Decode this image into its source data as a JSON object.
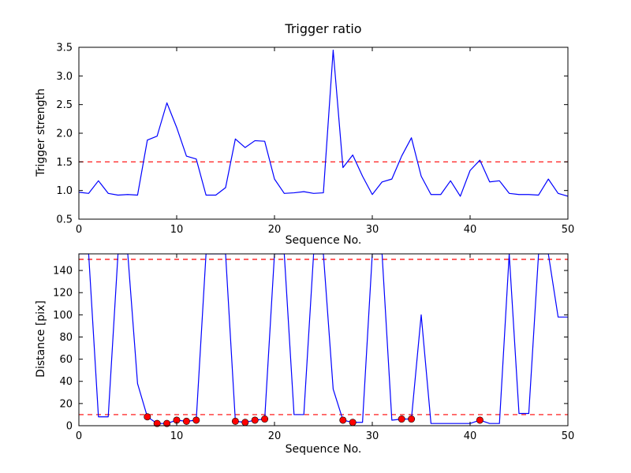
{
  "figure": {
    "background": "#ffffff"
  },
  "chart_data": [
    {
      "type": "line",
      "name": "trigger-strength",
      "title": "Trigger ratio",
      "xlabel": "Sequence No.",
      "ylabel": "Trigger strength",
      "xlim": [
        0,
        50
      ],
      "ylim": [
        0.5,
        3.5
      ],
      "xticks": [
        0,
        10,
        20,
        30,
        40,
        50
      ],
      "xtick_labels": [
        "0",
        "10",
        "20",
        "30",
        "40",
        "50"
      ],
      "yticks": [
        0.5,
        1.0,
        1.5,
        2.0,
        2.5,
        3.0,
        3.5
      ],
      "ytick_labels": [
        "0.5",
        "1.0",
        "1.5",
        "2.0",
        "2.5",
        "3.0",
        "3.5"
      ],
      "line_color": "#0000ff",
      "threshold_color": "#ff0000",
      "thresholds": [
        1.5
      ],
      "grid": false,
      "legend": null,
      "x": [
        0,
        1,
        2,
        3,
        4,
        5,
        6,
        7,
        8,
        9,
        10,
        11,
        12,
        13,
        14,
        15,
        16,
        17,
        18,
        19,
        20,
        21,
        22,
        23,
        24,
        25,
        26,
        27,
        28,
        29,
        30,
        31,
        32,
        33,
        34,
        35,
        36,
        37,
        38,
        39,
        40,
        41,
        42,
        43,
        44,
        45,
        46,
        47,
        48,
        49,
        50
      ],
      "y": [
        0.97,
        0.95,
        1.17,
        0.95,
        0.92,
        0.93,
        0.92,
        1.88,
        1.95,
        2.53,
        2.1,
        1.6,
        1.55,
        0.92,
        0.92,
        1.05,
        1.9,
        1.75,
        1.87,
        1.86,
        1.2,
        0.95,
        0.96,
        0.98,
        0.95,
        0.96,
        3.45,
        1.4,
        1.62,
        1.25,
        0.93,
        1.15,
        1.2,
        1.6,
        1.92,
        1.25,
        0.93,
        0.93,
        1.17,
        0.9,
        1.35,
        1.53,
        1.15,
        1.17,
        0.95,
        0.93,
        0.93,
        0.92,
        1.2,
        0.95,
        0.9
      ]
    },
    {
      "type": "line",
      "name": "distance",
      "title": "",
      "xlabel": "Sequence No.",
      "ylabel": "Distance [pix]",
      "xlim": [
        0,
        50
      ],
      "ylim": [
        0,
        155
      ],
      "xticks": [
        0,
        10,
        20,
        30,
        40,
        50
      ],
      "xtick_labels": [
        "0",
        "10",
        "20",
        "30",
        "40",
        "50"
      ],
      "yticks": [
        0,
        20,
        40,
        60,
        80,
        100,
        120,
        140
      ],
      "ytick_labels": [
        "0",
        "20",
        "40",
        "60",
        "80",
        "100",
        "120",
        "140"
      ],
      "line_color": "#0000ff",
      "threshold_color": "#ff0000",
      "thresholds": [
        150,
        10
      ],
      "grid": false,
      "legend": null,
      "x": [
        0,
        1,
        2,
        3,
        4,
        5,
        6,
        7,
        8,
        9,
        10,
        11,
        12,
        13,
        14,
        15,
        16,
        17,
        18,
        19,
        20,
        21,
        22,
        23,
        24,
        25,
        26,
        27,
        28,
        29,
        30,
        31,
        32,
        33,
        34,
        35,
        36,
        37,
        38,
        39,
        40,
        41,
        42,
        43,
        44,
        45,
        46,
        47,
        48,
        49,
        50
      ],
      "y": [
        155,
        155,
        8,
        8,
        155,
        155,
        38,
        8,
        2,
        2,
        5,
        4,
        5,
        155,
        155,
        155,
        4,
        3,
        5,
        6,
        155,
        155,
        10,
        10,
        155,
        155,
        33,
        5,
        3,
        3,
        155,
        155,
        5,
        6,
        6,
        100,
        2,
        2,
        2,
        2,
        2,
        5,
        2,
        2,
        155,
        11,
        11,
        155,
        155,
        98,
        98
      ],
      "markers": {
        "shape": "circle",
        "color": "#ff0000",
        "edge_color": "#000000",
        "points": [
          {
            "x": 7,
            "y": 8
          },
          {
            "x": 8,
            "y": 2
          },
          {
            "x": 9,
            "y": 2
          },
          {
            "x": 10,
            "y": 5
          },
          {
            "x": 11,
            "y": 4
          },
          {
            "x": 12,
            "y": 5
          },
          {
            "x": 16,
            "y": 4
          },
          {
            "x": 17,
            "y": 3
          },
          {
            "x": 18,
            "y": 5
          },
          {
            "x": 19,
            "y": 6
          },
          {
            "x": 27,
            "y": 5
          },
          {
            "x": 28,
            "y": 3
          },
          {
            "x": 33,
            "y": 6
          },
          {
            "x": 34,
            "y": 6
          },
          {
            "x": 41,
            "y": 5
          }
        ]
      }
    }
  ]
}
